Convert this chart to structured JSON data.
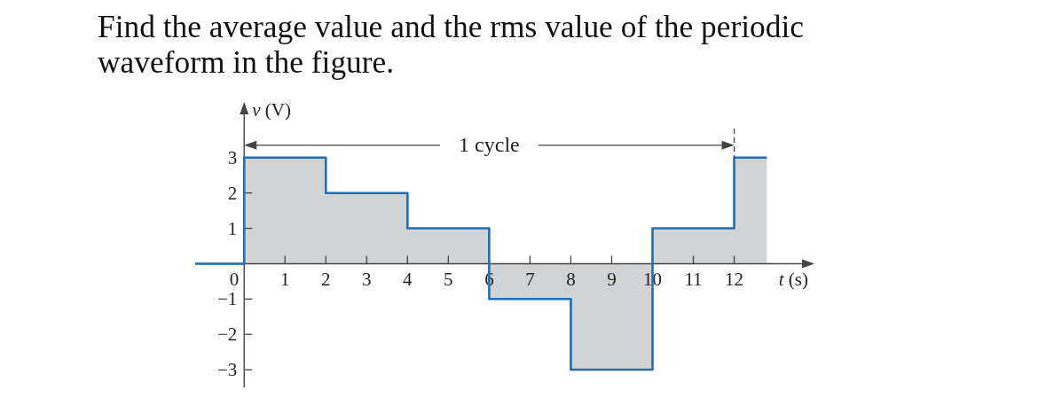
{
  "chart_data": {
    "type": "step",
    "title": "Find the average value and the rms value of the periodic waveform in the figure.",
    "xlabel": "t (s)",
    "ylabel": "v (V)",
    "series": [
      {
        "type": "area",
        "color": "#d1d3d4",
        "x": [
          0,
          2,
          2,
          4,
          4,
          6,
          6,
          8,
          8,
          10,
          10,
          12,
          12,
          12.8
        ],
        "values": [
          3,
          3,
          2,
          2,
          1,
          1,
          -1,
          -1,
          -3,
          -3,
          1,
          1,
          3,
          3
        ]
      },
      {
        "type": "step",
        "color": "#1f6fb4",
        "x": [
          -1.2,
          0,
          2,
          4,
          6,
          8,
          10,
          12,
          12.8
        ],
        "values": [
          0,
          3,
          2,
          1,
          -1,
          -3,
          1,
          3,
          3
        ]
      }
    ],
    "xlim": [
      -1.2,
      13.9
    ],
    "ylim": [
      -3.5,
      4.5
    ],
    "xticks": [
      0,
      1,
      2,
      3,
      4,
      5,
      6,
      7,
      8,
      9,
      10,
      11,
      12
    ],
    "yticks": [
      {
        "value": -3,
        "label": "−3"
      },
      {
        "value": -2,
        "label": "−2"
      },
      {
        "value": -1,
        "label": "−1"
      },
      1,
      2,
      3
    ],
    "annotations": [
      {
        "text": "1 cycle",
        "x": 12,
        "y": 3.35
      }
    ],
    "ref_lines": [
      {
        "axis": "x",
        "value": 12,
        "line_style": "dashed"
      }
    ]
  }
}
